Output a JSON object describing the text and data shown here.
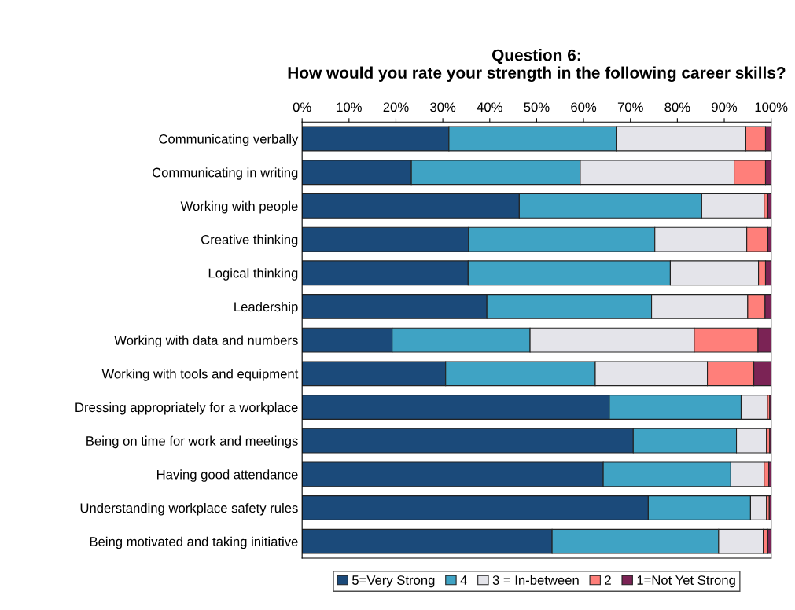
{
  "chart_data": {
    "type": "bar",
    "orientation": "horizontal",
    "stacked": true,
    "title": "Question 6:\nHow would you rate your strength in the following career skills?",
    "categories": [
      "Communicating verbally",
      "Communicating in writing",
      "Working with people",
      "Creative thinking",
      "Logical thinking",
      "Leadership",
      "Working with data and numbers",
      "Working with tools and equipment",
      "Dressing appropriately for a workplace",
      "Being on time for work and meetings",
      "Having good attendance",
      "Understanding workplace safety rules",
      "Being motivated and taking initiative"
    ],
    "series": [
      {
        "name": "5=Very Strong",
        "color": "#1b4a7a",
        "values": [
          31.3,
          23.3,
          46.3,
          35.5,
          35.4,
          39.4,
          19.2,
          30.6,
          65.5,
          70.6,
          64.2,
          73.8,
          53.3
        ]
      },
      {
        "name": "4",
        "color": "#3fa3c4",
        "values": [
          35.8,
          36.0,
          38.9,
          39.7,
          43.1,
          35.1,
          29.4,
          31.9,
          28.1,
          22.0,
          27.2,
          21.8,
          35.5
        ]
      },
      {
        "name": "3 = In-between",
        "color": "#e4e4ea",
        "values": [
          27.5,
          32.8,
          13.3,
          19.6,
          18.8,
          20.5,
          35.0,
          23.9,
          5.6,
          6.4,
          7.1,
          3.4,
          9.5
        ]
      },
      {
        "name": "2",
        "color": "#ff7f7a",
        "values": [
          4.2,
          6.7,
          0.8,
          4.5,
          1.5,
          3.7,
          13.6,
          9.9,
          0.5,
          0.7,
          1.0,
          0.6,
          1.0
        ]
      },
      {
        "name": "1=Not Yet Strong",
        "color": "#7b2355",
        "values": [
          1.2,
          1.2,
          0.7,
          0.7,
          1.2,
          1.3,
          2.8,
          3.7,
          0.3,
          0.3,
          0.5,
          0.4,
          0.7
        ]
      }
    ],
    "xlim": [
      0,
      100
    ],
    "xticks": [
      {
        "value": 0,
        "label": "0%"
      },
      {
        "value": 10,
        "label": "10%"
      },
      {
        "value": 20,
        "label": "20%"
      },
      {
        "value": 30,
        "label": "30%"
      },
      {
        "value": 40,
        "label": "40%"
      },
      {
        "value": 50,
        "label": "50%"
      },
      {
        "value": 60,
        "label": "60%"
      },
      {
        "value": 70,
        "label": "70%"
      },
      {
        "value": 80,
        "label": "80%"
      },
      {
        "value": 90,
        "label": "90%"
      },
      {
        "value": 100,
        "label": "100%"
      }
    ],
    "grid": false,
    "legend": "bottom"
  }
}
